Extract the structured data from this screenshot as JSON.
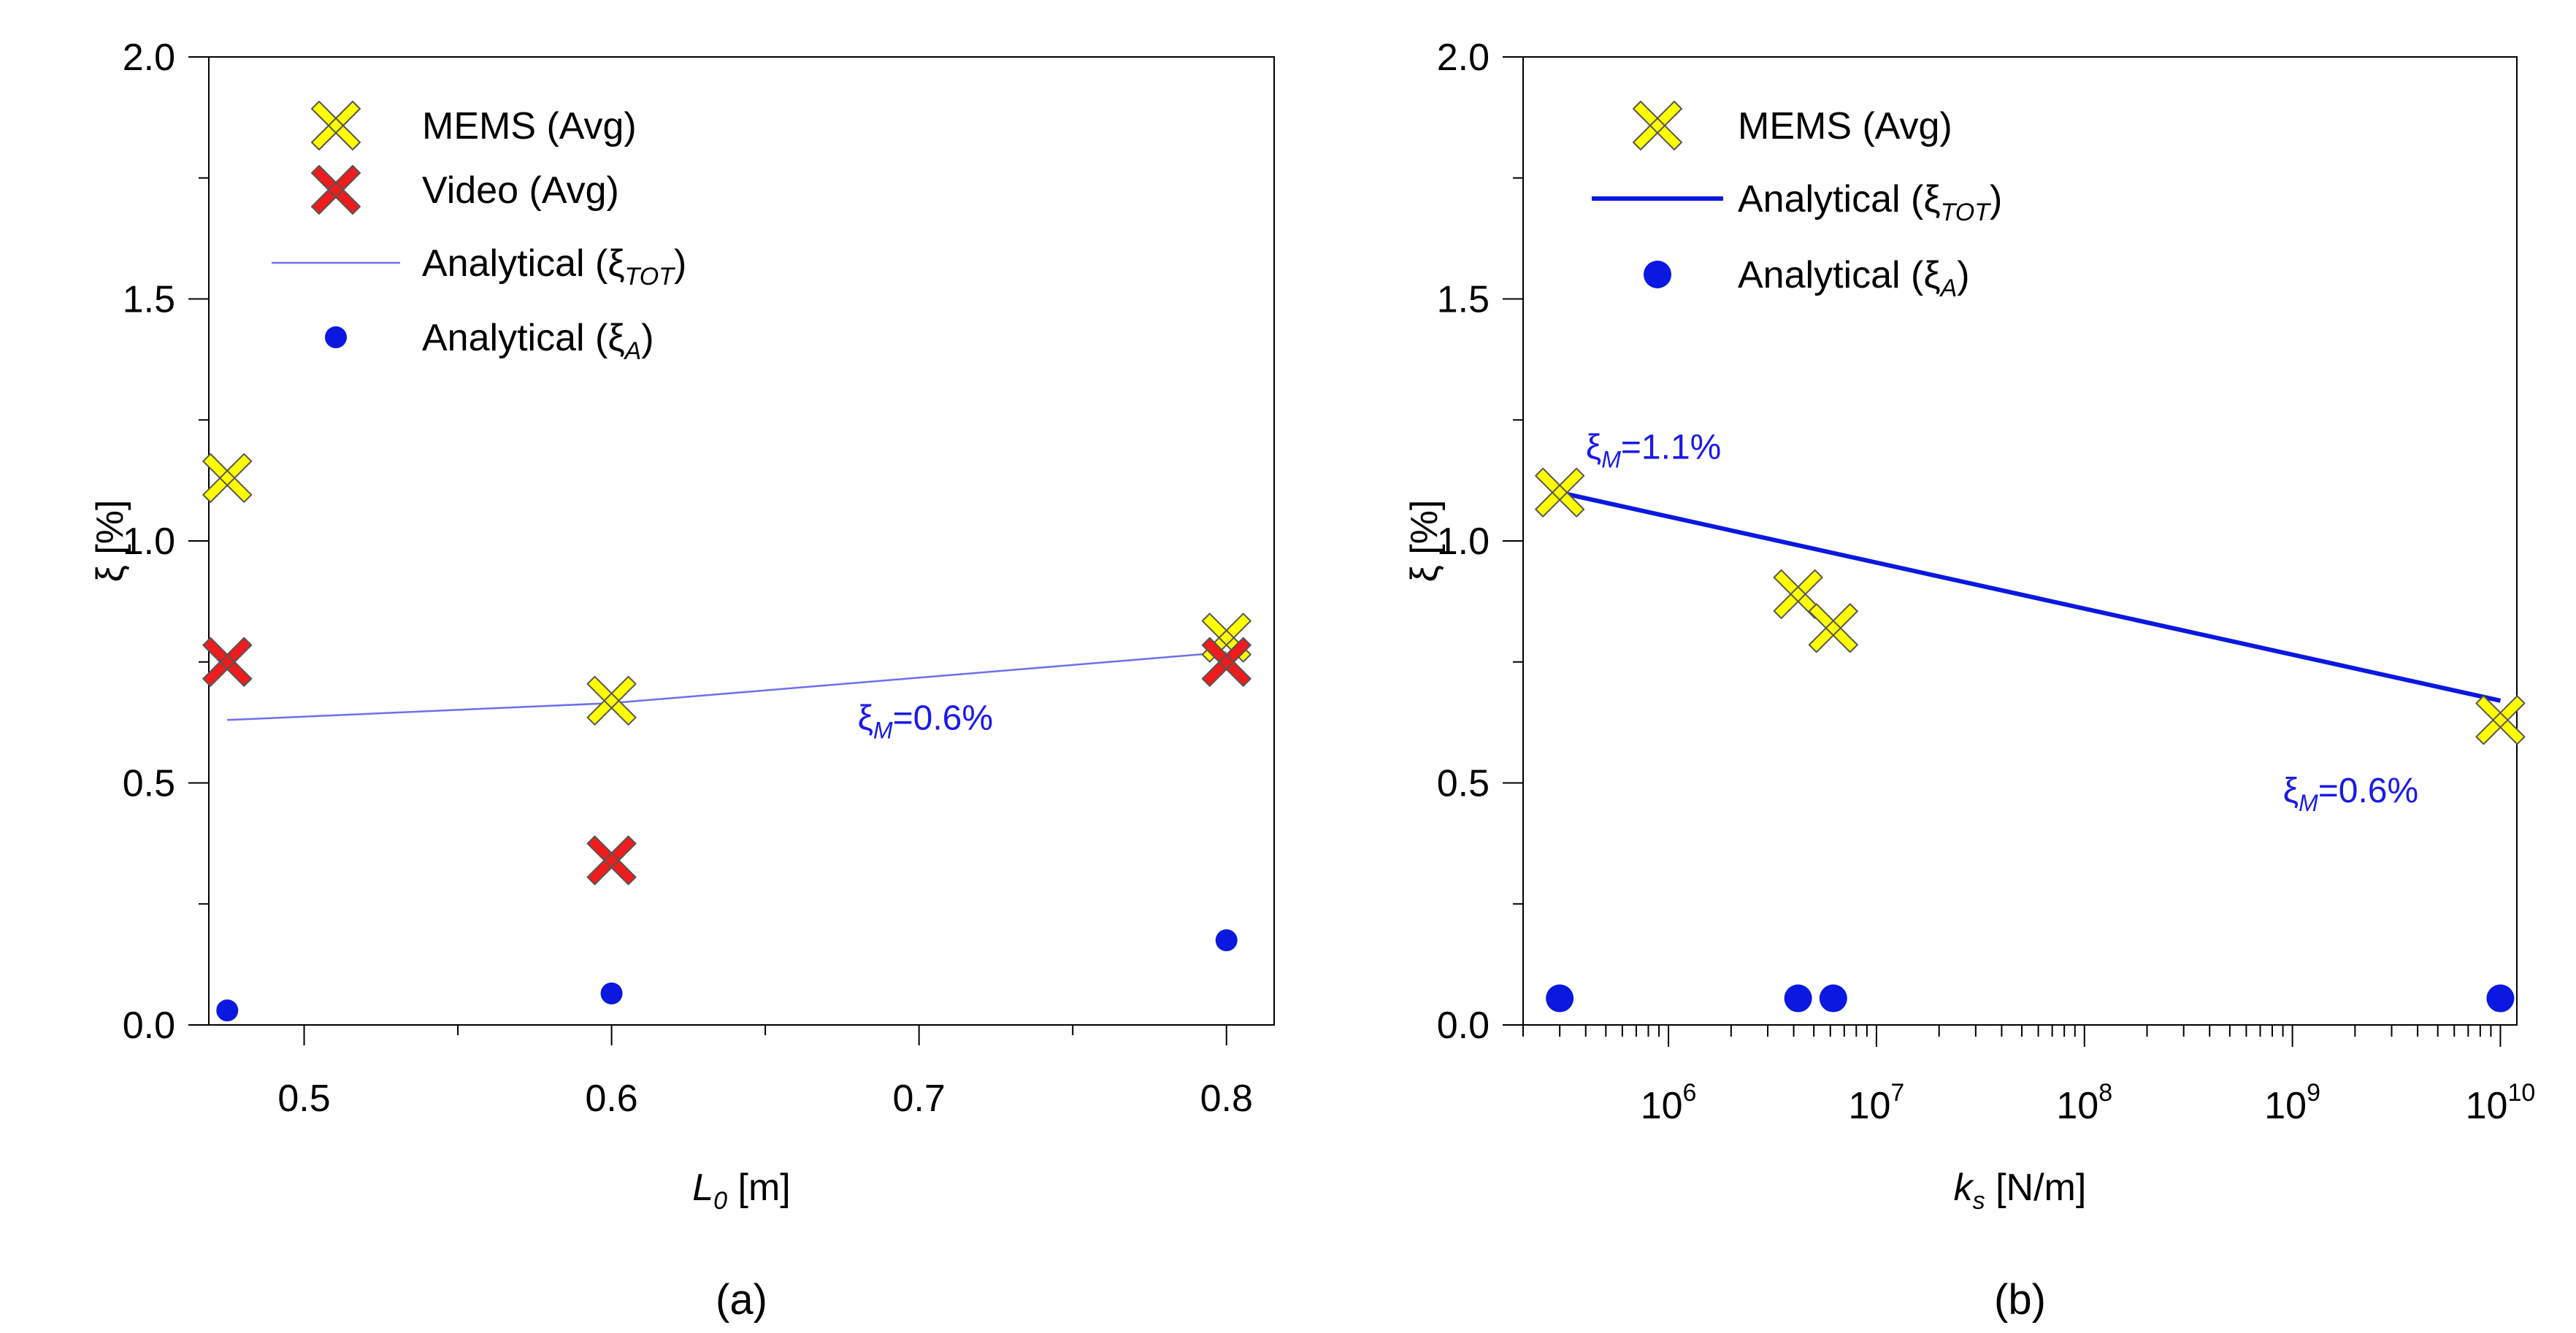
{
  "chart_data": [
    {
      "id": "a",
      "type": "scatter",
      "caption": "(a)",
      "xscale": "linear",
      "xlim": [
        0.469,
        0.8155
      ],
      "ylim": [
        0,
        2
      ],
      "xticks": [
        0.5,
        0.6,
        0.7,
        0.8
      ],
      "xtick_labels": [
        "0.5",
        "0.6",
        "0.7",
        "0.8"
      ],
      "yticks": [
        0,
        0.5,
        1,
        1.5,
        2
      ],
      "ytick_labels": [
        "0.0",
        "0.5",
        "1.0",
        "1.5",
        "2.0"
      ],
      "ylabel": "ξ  [%]",
      "xlabel_main": "L",
      "xlabel_sub": "0",
      "xlabel_unit": "  [m]",
      "colors": {
        "mems": "#ffff00",
        "video": "#ee1c1c",
        "tot": "#6e6ef2",
        "a": "#0b18e0",
        "annot": "#1a1ae8"
      },
      "series": [
        {
          "name": "MEMS (Avg)",
          "marker": "x-thick",
          "points": [
            [
              0.475,
              1.13
            ],
            [
              0.6,
              0.67
            ],
            [
              0.8,
              0.8
            ]
          ]
        },
        {
          "name": "Video (Avg)",
          "marker": "x-thick",
          "points": [
            [
              0.475,
              0.75
            ],
            [
              0.6,
              0.34
            ],
            [
              0.8,
              0.75
            ]
          ]
        },
        {
          "name": "Analytical (ξTOT)",
          "marker": "line",
          "points": [
            [
              0.475,
              0.63
            ],
            [
              0.6,
              0.665
            ],
            [
              0.8,
              0.77
            ]
          ]
        },
        {
          "name": "Analytical (ξA)",
          "marker": "dot",
          "points": [
            [
              0.475,
              0.03
            ],
            [
              0.6,
              0.065
            ],
            [
              0.8,
              0.175
            ]
          ]
        }
      ],
      "legend": [
        {
          "text": "MEMS (Avg)",
          "sub": ""
        },
        {
          "text": "Video (Avg)",
          "sub": ""
        },
        {
          "text": "Analytical (ξ",
          "sub": "TOT",
          "close": ")"
        },
        {
          "text": "Analytical (ξ",
          "sub": "A",
          "close": ")"
        }
      ],
      "annotations": [
        {
          "label": "ξ",
          "sub": "M",
          "value": "=0.6%",
          "at": [
            0.68,
            0.61
          ]
        }
      ]
    },
    {
      "id": "b",
      "type": "scatter",
      "caption": "(b)",
      "xscale": "log",
      "xlim": [
        200000,
        12000000000
      ],
      "ylim": [
        0,
        2
      ],
      "xticks_major": [
        1000000,
        10000000,
        100000000,
        1000000000,
        10000000000
      ],
      "xtick_exponents": [
        "6",
        "7",
        "8",
        "9",
        "10"
      ],
      "xtick_base": "10",
      "yticks": [
        0,
        0.5,
        1,
        1.5,
        2
      ],
      "ytick_labels": [
        "0.0",
        "0.5",
        "1.0",
        "1.5",
        "2.0"
      ],
      "ylabel": "ξ  [%]",
      "xlabel_main": "k",
      "xlabel_sub": "s",
      "xlabel_unit": "  [N/m]",
      "colors": {
        "mems": "#ffff00",
        "tot": "#0b18e0",
        "a": "#0b18e0",
        "annot": "#1a1ae8"
      },
      "series": [
        {
          "name": "MEMS (Avg)",
          "marker": "x-thick",
          "points": [
            [
              300000,
              1.1
            ],
            [
              4200000,
              0.89
            ],
            [
              6200000,
              0.82
            ],
            [
              10000000000,
              0.63
            ]
          ]
        },
        {
          "name": "Analytical (ξTOT)",
          "marker": "line",
          "points": [
            [
              300000,
              1.1
            ],
            [
              10000000000,
              0.67
            ]
          ]
        },
        {
          "name": "Analytical (ξA)",
          "marker": "dot",
          "points": [
            [
              300000,
              0.055
            ],
            [
              4200000,
              0.055
            ],
            [
              6200000,
              0.055
            ],
            [
              10000000000,
              0.055
            ]
          ]
        }
      ],
      "legend": [
        {
          "text": "MEMS (Avg)",
          "sub": ""
        },
        {
          "text": "Analytical (ξ",
          "sub": "TOT",
          "close": ")"
        },
        {
          "text": "Analytical (ξ",
          "sub": "A",
          "close": ")"
        }
      ],
      "annotations": [
        {
          "label": "ξ",
          "sub": "M",
          "value": "=1.1%",
          "at": [
            400000,
            1.17
          ]
        },
        {
          "label": "ξ",
          "sub": "M",
          "value": "=0.6%",
          "at": [
            900000000,
            0.46
          ]
        }
      ]
    }
  ]
}
